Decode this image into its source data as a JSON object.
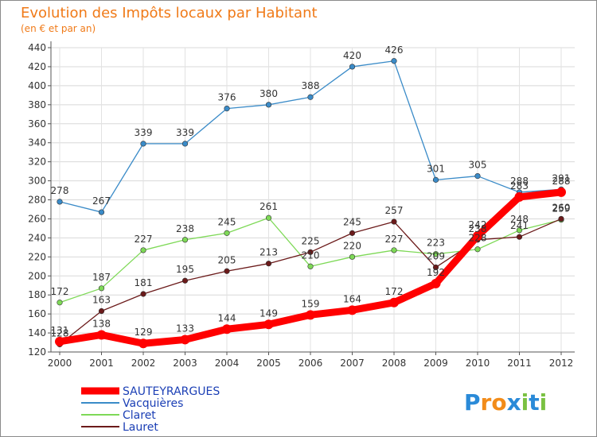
{
  "chart_data": {
    "type": "line",
    "title": "Evolution des Impôts locaux par Habitant",
    "subtitle": "(en € et par an)",
    "x": [
      "2000",
      "2001",
      "2002",
      "2003",
      "2004",
      "2005",
      "2006",
      "2007",
      "2008",
      "2009",
      "2010",
      "2011",
      "2012"
    ],
    "y_ticks": [
      120,
      140,
      160,
      180,
      200,
      220,
      240,
      260,
      280,
      300,
      320,
      340,
      360,
      380,
      400,
      420,
      440
    ],
    "ylim": [
      120,
      440
    ],
    "grid": true,
    "legend_position": "bottom-left",
    "series": [
      {
        "name": "SAUTEYRARGUES",
        "color": "#ff0000",
        "values": [
          131,
          138,
          129,
          133,
          144,
          149,
          159,
          164,
          172,
          192,
          242,
          283,
          288
        ]
      },
      {
        "name": "Vacquières",
        "color": "#3a8bc8",
        "values": [
          278,
          267,
          339,
          339,
          376,
          380,
          388,
          420,
          426,
          301,
          305,
          288,
          291
        ]
      },
      {
        "name": "Claret",
        "color": "#7ed957",
        "values": [
          172,
          187,
          227,
          238,
          245,
          261,
          210,
          220,
          227,
          223,
          228,
          248,
          259
        ]
      },
      {
        "name": "Lauret",
        "color": "#6b1a1a",
        "values": [
          128,
          163,
          181,
          195,
          205,
          213,
          225,
          245,
          257,
          209,
          238,
          241,
          260
        ]
      }
    ]
  },
  "brand": {
    "text": "Proxiti",
    "letters": [
      "P",
      "r",
      "o",
      "x",
      "i",
      "t",
      "i"
    ],
    "colors": [
      "#2a8ad8",
      "#f28c1a",
      "#f28c1a",
      "#2a8ad8",
      "#7ac142",
      "#2a8ad8",
      "#7ac142"
    ]
  }
}
